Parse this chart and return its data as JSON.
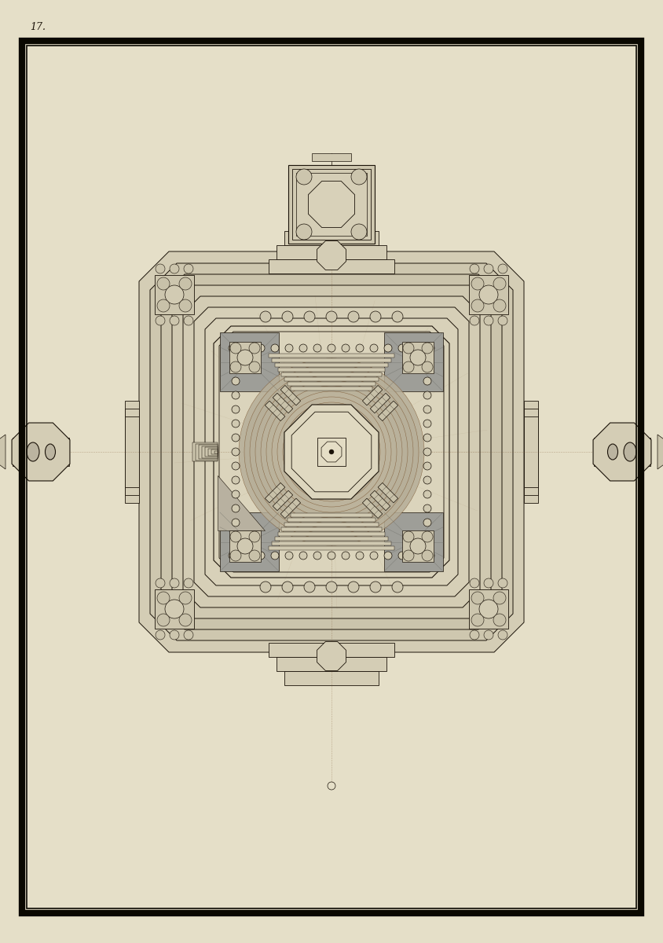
{
  "bg_color": "#e5dfc8",
  "paper_color": "#e5dfc8",
  "ink_color": "#1a1208",
  "brown_ink": "#7a5530",
  "gray_wash": "#8a8880",
  "light_gray": "#aaaaaa",
  "dark_gray": "#666660",
  "border_outer_color": "#0a0800",
  "page_number": "17.",
  "figw": 8.44,
  "figh": 12.0,
  "dpi": 100
}
